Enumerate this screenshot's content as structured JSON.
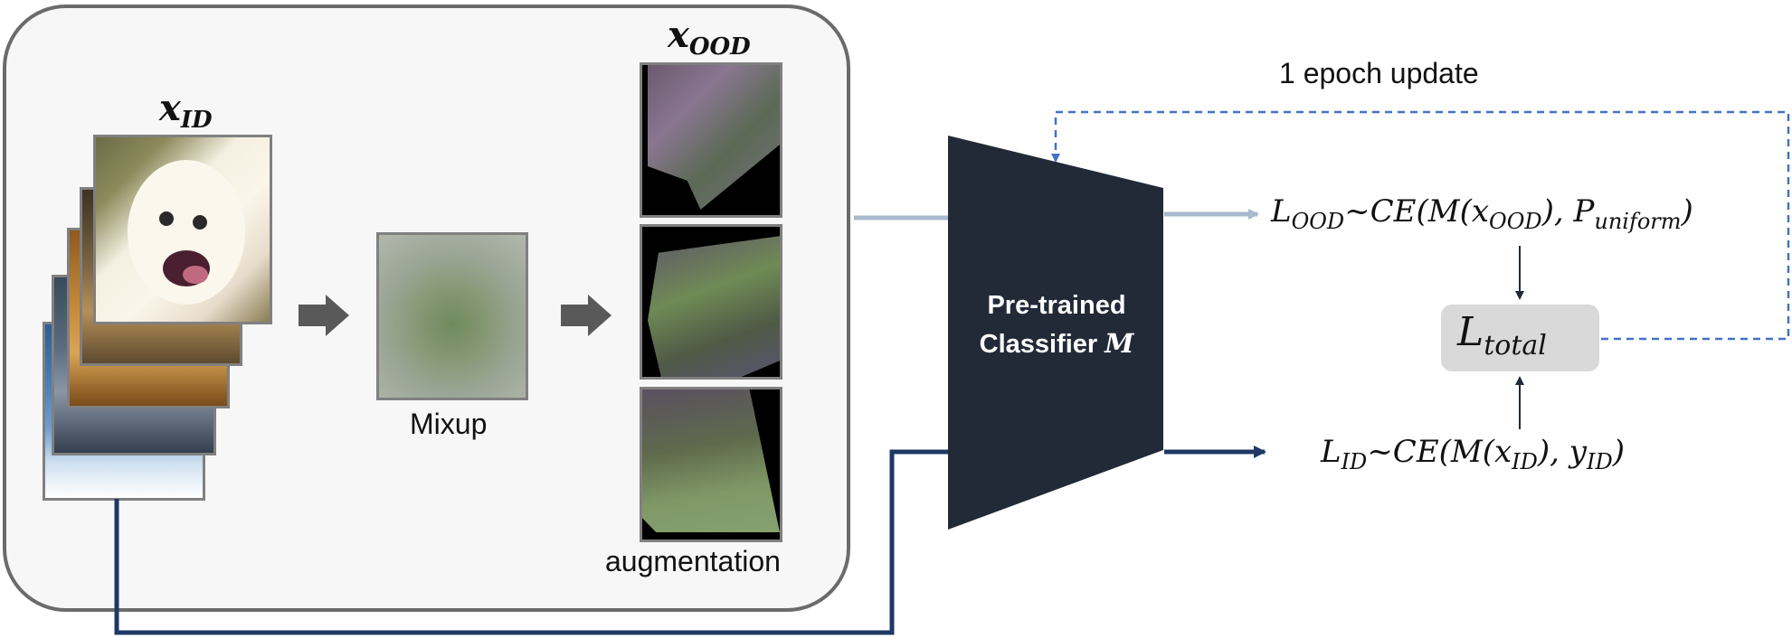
{
  "labels": {
    "x_id": "x",
    "x_id_sub": "ID",
    "x_ood": "x",
    "x_ood_sub": "OOD",
    "mixup": "Mixup",
    "augmentation": "augmentation",
    "update": "1 epoch update",
    "classifier_line1": "Pre-trained",
    "classifier_line2": "Classifier ",
    "classifier_var": "M"
  },
  "equations": {
    "l_ood_main": "L",
    "l_ood_sub": "OOD",
    "l_ood_mid": "~CE(M(x",
    "l_ood_xsub": "OOD",
    "l_ood_comma": "), P",
    "l_ood_psub": "uniform",
    "l_ood_end": ")",
    "l_id_main": "L",
    "l_id_sub": "ID",
    "l_id_mid": "~CE(M(x",
    "l_id_xsub": "ID",
    "l_id_comma": "), y",
    "l_id_ysub": "ID",
    "l_id_end": ")",
    "l_total_main": "L",
    "l_total_sub": "total"
  },
  "colors": {
    "panel_border": "#6b6b6b",
    "classifier_fill": "#222a38",
    "ood_arrow": "#a9b8cc",
    "id_arrow": "#1f3864",
    "update_dashed": "#4472c4",
    "block_arrow": "#595959",
    "total_box": "#d9d9d9"
  }
}
